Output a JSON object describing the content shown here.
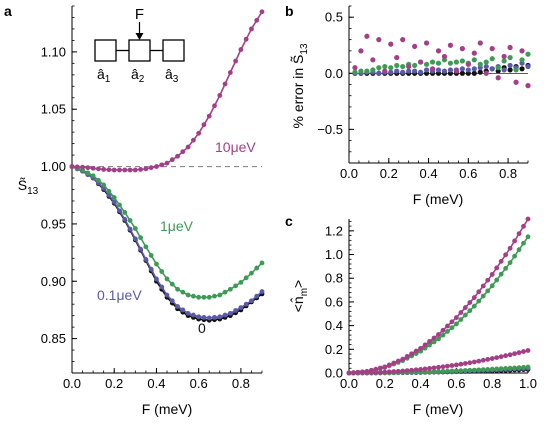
{
  "figure": {
    "panel_labels": {
      "a": "a",
      "b": "b",
      "c": "c"
    },
    "inset": {
      "drive_label": "F",
      "mode_labels": [
        "â1",
        "â2",
        "â3"
      ],
      "mode_subscripts": [
        "1",
        "2",
        "3"
      ]
    }
  },
  "colors": {
    "magenta": "#a23f86",
    "green": "#3e9b55",
    "blue": "#5a5aa8",
    "black": "#111111",
    "reference": "#8a8a8a"
  },
  "chart_data": [
    {
      "panel": "a",
      "type": "line",
      "xlabel": "F (meV)",
      "ylabel": "S13",
      "ylabel_tilde": true,
      "xlim": [
        0.0,
        0.9
      ],
      "ylim": [
        0.82,
        1.14
      ],
      "xticks": [
        0.0,
        0.2,
        0.4,
        0.6,
        0.8
      ],
      "xtick_labels": [
        "0.0",
        "0.2",
        "0.4",
        "0.6",
        "0.8"
      ],
      "yticks": [
        0.85,
        0.9,
        0.95,
        1.0,
        1.05,
        1.1
      ],
      "ytick_labels": [
        "0.85",
        "0.90",
        "0.95",
        "1.00",
        "1.05",
        "1.10"
      ],
      "reference_line": {
        "y": 1.0,
        "style": "dashed"
      },
      "series": [
        {
          "name": "10μeV",
          "color": "#a23f86",
          "x": [
            0.0,
            0.05,
            0.1,
            0.15,
            0.2,
            0.25,
            0.3,
            0.35,
            0.4,
            0.45,
            0.5,
            0.55,
            0.6,
            0.65,
            0.7,
            0.75,
            0.8,
            0.85,
            0.9
          ],
          "y": [
            1.0,
            0.9995,
            0.9985,
            0.9975,
            0.997,
            0.997,
            0.997,
            0.998,
            1.0,
            1.003,
            1.009,
            1.017,
            1.029,
            1.044,
            1.062,
            1.082,
            1.102,
            1.12,
            1.135
          ]
        },
        {
          "name": "1μeV",
          "color": "#3e9b55",
          "x": [
            0.0,
            0.05,
            0.1,
            0.15,
            0.2,
            0.25,
            0.3,
            0.35,
            0.4,
            0.45,
            0.5,
            0.55,
            0.6,
            0.65,
            0.7,
            0.75,
            0.8,
            0.85,
            0.9
          ],
          "y": [
            1.0,
            0.997,
            0.992,
            0.984,
            0.973,
            0.96,
            0.946,
            0.93,
            0.915,
            0.902,
            0.893,
            0.888,
            0.886,
            0.886,
            0.888,
            0.893,
            0.899,
            0.907,
            0.916
          ]
        },
        {
          "name": "0.1μeV",
          "color": "#5a5aa8",
          "x": [
            0.0,
            0.05,
            0.1,
            0.15,
            0.2,
            0.25,
            0.3,
            0.35,
            0.4,
            0.45,
            0.5,
            0.55,
            0.6,
            0.65,
            0.7,
            0.75,
            0.8,
            0.85,
            0.9
          ],
          "y": [
            1.0,
            0.996,
            0.99,
            0.981,
            0.969,
            0.954,
            0.937,
            0.919,
            0.902,
            0.888,
            0.878,
            0.872,
            0.869,
            0.868,
            0.869,
            0.872,
            0.877,
            0.883,
            0.891
          ]
        },
        {
          "name": "0",
          "color": "#111111",
          "x": [
            0.0,
            0.05,
            0.1,
            0.15,
            0.2,
            0.25,
            0.3,
            0.35,
            0.4,
            0.45,
            0.5,
            0.55,
            0.6,
            0.65,
            0.7,
            0.75,
            0.8,
            0.85,
            0.9
          ],
          "y": [
            1.0,
            0.996,
            0.99,
            0.98,
            0.968,
            0.953,
            0.936,
            0.918,
            0.9,
            0.886,
            0.876,
            0.87,
            0.867,
            0.866,
            0.867,
            0.87,
            0.875,
            0.882,
            0.889
          ]
        }
      ],
      "annotations": [
        "10μeV",
        "1μeV",
        "0.1μeV",
        "0"
      ]
    },
    {
      "panel": "b",
      "type": "scatter",
      "xlabel": "F (meV)",
      "ylabel": "% error in S13",
      "ylabel_tilde": true,
      "xlim": [
        0.0,
        0.9
      ],
      "ylim": [
        -0.8,
        0.6
      ],
      "xticks": [
        0.0,
        0.2,
        0.4,
        0.6,
        0.8
      ],
      "xtick_labels": [
        "0.0",
        "0.2",
        "0.4",
        "0.6",
        "0.8"
      ],
      "yticks": [
        -0.5,
        0.0,
        0.5
      ],
      "ytick_labels": [
        "−0.5",
        "0.0",
        "0.5"
      ],
      "series": [
        {
          "name": "",
          "color": "#a23f86",
          "x": [
            0.03,
            0.06,
            0.09,
            0.12,
            0.15,
            0.18,
            0.21,
            0.24,
            0.27,
            0.3,
            0.33,
            0.36,
            0.39,
            0.42,
            0.45,
            0.48,
            0.51,
            0.54,
            0.57,
            0.6,
            0.63,
            0.66,
            0.69,
            0.72,
            0.75,
            0.78,
            0.81,
            0.84,
            0.87,
            0.9
          ],
          "y": [
            0.05,
            0.2,
            0.33,
            0.12,
            0.3,
            0.02,
            0.26,
            0.14,
            0.3,
            0.06,
            0.24,
            0.1,
            0.27,
            0.04,
            0.2,
            0.15,
            0.25,
            0.02,
            0.22,
            0.08,
            0.18,
            0.27,
            0.0,
            0.22,
            -0.04,
            0.15,
            0.23,
            -0.08,
            0.2,
            -0.11
          ]
        },
        {
          "name": "",
          "color": "#3e9b55",
          "x": [
            0.03,
            0.06,
            0.09,
            0.12,
            0.15,
            0.18,
            0.21,
            0.24,
            0.27,
            0.3,
            0.33,
            0.36,
            0.39,
            0.42,
            0.45,
            0.48,
            0.51,
            0.54,
            0.57,
            0.6,
            0.63,
            0.66,
            0.69,
            0.72,
            0.75,
            0.78,
            0.81,
            0.84,
            0.87,
            0.9
          ],
          "y": [
            0.01,
            0.02,
            0.02,
            0.03,
            0.05,
            0.06,
            0.05,
            0.07,
            0.06,
            0.08,
            0.07,
            0.1,
            0.08,
            0.1,
            0.09,
            0.12,
            0.09,
            0.1,
            0.11,
            0.09,
            0.12,
            0.08,
            0.1,
            0.13,
            0.05,
            0.11,
            0.14,
            0.03,
            0.12,
            0.17
          ]
        },
        {
          "name": "",
          "color": "#5a5aa8",
          "x": [
            0.03,
            0.06,
            0.09,
            0.12,
            0.15,
            0.18,
            0.21,
            0.24,
            0.27,
            0.3,
            0.33,
            0.36,
            0.39,
            0.42,
            0.45,
            0.48,
            0.51,
            0.54,
            0.57,
            0.6,
            0.63,
            0.66,
            0.69,
            0.72,
            0.75,
            0.78,
            0.81,
            0.84,
            0.87,
            0.9
          ],
          "y": [
            0.0,
            0.0,
            0.01,
            0.01,
            0.0,
            0.01,
            0.01,
            0.02,
            0.01,
            0.02,
            0.02,
            0.01,
            0.03,
            0.02,
            0.03,
            0.02,
            0.03,
            0.03,
            0.04,
            0.03,
            0.04,
            0.05,
            0.06,
            0.04,
            0.06,
            0.03,
            0.07,
            0.05,
            0.09,
            0.06
          ]
        },
        {
          "name": "",
          "color": "#111111",
          "x": [
            0.03,
            0.06,
            0.09,
            0.12,
            0.15,
            0.18,
            0.21,
            0.24,
            0.27,
            0.3,
            0.33,
            0.36,
            0.39,
            0.42,
            0.45,
            0.48,
            0.51,
            0.54,
            0.57,
            0.6,
            0.63,
            0.66,
            0.69,
            0.72,
            0.75,
            0.78,
            0.81,
            0.84,
            0.87,
            0.9
          ],
          "y": [
            0.0,
            0.0,
            0.0,
            0.0,
            0.0,
            0.0,
            0.0,
            0.0,
            0.0,
            0.0,
            0.0,
            0.0,
            0.0,
            0.0,
            0.0,
            0.0,
            0.0,
            0.0,
            0.0,
            0.0,
            0.0,
            0.01,
            0.02,
            0.04,
            0.02,
            0.05,
            0.03,
            0.06,
            0.04,
            0.07
          ]
        }
      ]
    },
    {
      "panel": "c",
      "type": "line",
      "xlabel": "F (meV)",
      "ylabel": "<n_m>",
      "xlim": [
        0.0,
        1.0
      ],
      "ylim": [
        0.0,
        1.3
      ],
      "xticks": [
        0.0,
        0.2,
        0.4,
        0.6,
        0.8,
        1.0
      ],
      "xtick_labels": [
        "0.0",
        "0.2",
        "0.4",
        "0.6",
        "0.8",
        "1.0"
      ],
      "yticks": [
        0.0,
        0.2,
        0.4,
        0.6,
        0.8,
        1.0,
        1.2
      ],
      "ytick_labels": [
        "0.0",
        "0.2",
        "0.4",
        "0.6",
        "0.8",
        "1.0",
        "1.2"
      ],
      "series": [
        {
          "name": "",
          "color": "#a23f86",
          "x": [
            0.0,
            0.1,
            0.2,
            0.3,
            0.4,
            0.5,
            0.6,
            0.7,
            0.8,
            0.9,
            1.0
          ],
          "y": [
            0.0,
            0.013,
            0.052,
            0.117,
            0.208,
            0.325,
            0.468,
            0.637,
            0.832,
            1.053,
            1.3
          ]
        },
        {
          "name": "",
          "color": "#3e9b55",
          "x": [
            0.0,
            0.1,
            0.2,
            0.3,
            0.4,
            0.5,
            0.6,
            0.7,
            0.8,
            0.9,
            1.0
          ],
          "y": [
            0.0,
            0.012,
            0.046,
            0.104,
            0.184,
            0.288,
            0.414,
            0.564,
            0.736,
            0.932,
            1.15
          ]
        },
        {
          "name": "",
          "color": "#a23f86",
          "x": [
            0.0,
            0.1,
            0.2,
            0.3,
            0.4,
            0.5,
            0.6,
            0.7,
            0.8,
            0.9,
            1.0
          ],
          "y": [
            0.0,
            0.0019,
            0.0076,
            0.017,
            0.03,
            0.048,
            0.068,
            0.093,
            0.122,
            0.154,
            0.19
          ]
        },
        {
          "name": "",
          "color": "#3e9b55",
          "x": [
            0.0,
            0.1,
            0.2,
            0.3,
            0.4,
            0.5,
            0.6,
            0.7,
            0.8,
            0.9,
            1.0
          ],
          "y": [
            0.0,
            0.0005,
            0.002,
            0.0045,
            0.008,
            0.0125,
            0.018,
            0.0245,
            0.032,
            0.0405,
            0.05
          ]
        },
        {
          "name": "",
          "color": "#5a5aa8",
          "x": [
            0.0,
            0.1,
            0.2,
            0.3,
            0.4,
            0.5,
            0.6,
            0.7,
            0.8,
            0.9,
            1.0
          ],
          "y": [
            0.0,
            0.0004,
            0.0016,
            0.0036,
            0.0064,
            0.01,
            0.0144,
            0.0196,
            0.0256,
            0.0324,
            0.04
          ]
        },
        {
          "name": "",
          "color": "#111111",
          "x": [
            0.0,
            0.1,
            0.2,
            0.3,
            0.4,
            0.5,
            0.6,
            0.7,
            0.8,
            0.9,
            1.0
          ],
          "y": [
            0.0,
            0.0003,
            0.0012,
            0.0027,
            0.0048,
            0.0075,
            0.0108,
            0.0147,
            0.0192,
            0.0243,
            0.03
          ]
        }
      ]
    }
  ]
}
